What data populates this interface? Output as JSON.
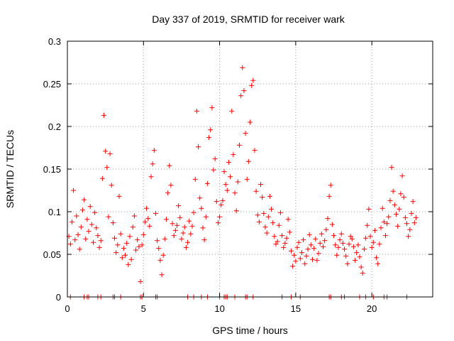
{
  "chart_data": {
    "type": "scatter",
    "title": "Day 337 of 2019, SRMTID for receiver wark",
    "xlabel": "GPS time / hours",
    "ylabel": "SRMTID / TECUs",
    "xlim": [
      0,
      24
    ],
    "ylim": [
      0,
      0.3
    ],
    "xticks": [
      0,
      5,
      10,
      15,
      20
    ],
    "xtick_labels": [
      "0",
      "5",
      "10",
      "15",
      "20"
    ],
    "yticks": [
      0,
      0.05,
      0.1,
      0.15,
      0.2,
      0.25,
      0.3
    ],
    "ytick_labels": [
      "0",
      "0.05",
      "0.1",
      "0.15",
      "0.2",
      "0.25",
      "0.3"
    ],
    "grid": true,
    "marker": "+",
    "color": "#ff0000",
    "series": [
      {
        "name": "SRMTID",
        "points": [
          [
            0.1,
            0.071
          ],
          [
            0.2,
            0.062
          ],
          [
            0.3,
            0.088
          ],
          [
            0.4,
            0.125
          ],
          [
            0.5,
            0.067
          ],
          [
            0.6,
            0.095
          ],
          [
            0.7,
            0.073
          ],
          [
            0.8,
            0.056
          ],
          [
            0.9,
            0.082
          ],
          [
            1.0,
            0.102
          ],
          [
            1.1,
            0.114
          ],
          [
            1.2,
            0.068
          ],
          [
            1.3,
            0.091
          ],
          [
            1.4,
            0.077
          ],
          [
            1.5,
            0.106
          ],
          [
            1.6,
            0.085
          ],
          [
            1.7,
            0.064
          ],
          [
            1.8,
            0.099
          ],
          [
            1.9,
            0.081
          ],
          [
            2.0,
            0.072
          ],
          [
            2.1,
            0.058
          ],
          [
            2.2,
            0.066
          ],
          [
            2.3,
            0.139
          ],
          [
            2.4,
            0.213
          ],
          [
            2.5,
            0.171
          ],
          [
            2.6,
            0.152
          ],
          [
            2.7,
            0.094
          ],
          [
            2.8,
            0.168
          ],
          [
            2.9,
            0.131
          ],
          [
            3.0,
            0.087
          ],
          [
            3.1,
            0.069
          ],
          [
            3.2,
            0.052
          ],
          [
            3.3,
            0.061
          ],
          [
            3.4,
            0.118
          ],
          [
            3.5,
            0.074
          ],
          [
            3.6,
            0.046
          ],
          [
            3.7,
            0.057
          ],
          [
            3.8,
            0.049
          ],
          [
            3.9,
            0.063
          ],
          [
            4.0,
            0.038
          ],
          [
            4.1,
            0.071
          ],
          [
            4.2,
            0.044
          ],
          [
            4.3,
            0.082
          ],
          [
            4.4,
            0.095
          ],
          [
            4.5,
            0.055
          ],
          [
            4.6,
            0.067
          ],
          [
            4.7,
            0.059
          ],
          [
            4.8,
            0.018
          ],
          [
            4.9,
            0.061
          ],
          [
            5.0,
            0.073
          ],
          [
            5.1,
            0.088
          ],
          [
            5.2,
            0.104
          ],
          [
            5.3,
            0.092
          ],
          [
            5.4,
            0.083
          ],
          [
            5.5,
            0.141
          ],
          [
            5.6,
            0.156
          ],
          [
            5.7,
            0.172
          ],
          [
            5.8,
            0.098
          ],
          [
            5.9,
            0.066
          ],
          [
            6.0,
            0.057
          ],
          [
            6.1,
            0.043
          ],
          [
            6.2,
            0.026
          ],
          [
            6.3,
            0.049
          ],
          [
            6.4,
            0.068
          ],
          [
            6.5,
            0.091
          ],
          [
            6.6,
            0.122
          ],
          [
            6.7,
            0.154
          ],
          [
            6.8,
            0.131
          ],
          [
            6.9,
            0.086
          ],
          [
            7.0,
            0.072
          ],
          [
            7.1,
            0.078
          ],
          [
            7.2,
            0.084
          ],
          [
            7.3,
            0.107
          ],
          [
            7.4,
            0.093
          ],
          [
            7.5,
            0.068
          ],
          [
            7.6,
            0.075
          ],
          [
            7.7,
            0.082
          ],
          [
            7.8,
            0.058
          ],
          [
            7.9,
            0.064
          ],
          [
            8.0,
            0.089
          ],
          [
            8.1,
            0.074
          ],
          [
            8.2,
            0.083
          ],
          [
            8.3,
            0.099
          ],
          [
            8.4,
            0.138
          ],
          [
            8.5,
            0.218
          ],
          [
            8.6,
            0.176
          ],
          [
            8.7,
            0.116
          ],
          [
            8.8,
            0.104
          ],
          [
            8.9,
            0.081
          ],
          [
            9.0,
            0.067
          ],
          [
            9.1,
            0.094
          ],
          [
            9.2,
            0.133
          ],
          [
            9.3,
            0.187
          ],
          [
            9.4,
            0.196
          ],
          [
            9.5,
            0.222
          ],
          [
            9.6,
            0.149
          ],
          [
            9.7,
            0.162
          ],
          [
            9.8,
            0.112
          ],
          [
            9.9,
            0.087
          ],
          [
            10.0,
            0.094
          ],
          [
            10.1,
            0.108
          ],
          [
            10.2,
            0.113
          ],
          [
            10.3,
            0.147
          ],
          [
            10.4,
            0.132
          ],
          [
            10.5,
            0.125
          ],
          [
            10.6,
            0.158
          ],
          [
            10.7,
            0.141
          ],
          [
            10.8,
            0.218
          ],
          [
            10.9,
            0.167
          ],
          [
            11.0,
            0.122
          ],
          [
            11.1,
            0.101
          ],
          [
            11.2,
            0.135
          ],
          [
            11.3,
            0.178
          ],
          [
            11.4,
            0.236
          ],
          [
            11.5,
            0.269
          ],
          [
            11.6,
            0.242
          ],
          [
            11.7,
            0.192
          ],
          [
            11.8,
            0.138
          ],
          [
            11.9,
            0.159
          ],
          [
            12.0,
            0.205
          ],
          [
            12.1,
            0.248
          ],
          [
            12.2,
            0.254
          ],
          [
            12.3,
            0.172
          ],
          [
            12.4,
            0.124
          ],
          [
            12.5,
            0.096
          ],
          [
            12.6,
            0.088
          ],
          [
            12.7,
            0.132
          ],
          [
            12.8,
            0.117
          ],
          [
            12.9,
            0.098
          ],
          [
            13.0,
            0.082
          ],
          [
            13.1,
            0.075
          ],
          [
            13.2,
            0.094
          ],
          [
            13.3,
            0.118
          ],
          [
            13.4,
            0.103
          ],
          [
            13.5,
            0.087
          ],
          [
            13.6,
            0.071
          ],
          [
            13.7,
            0.062
          ],
          [
            13.8,
            0.065
          ],
          [
            13.9,
            0.084
          ],
          [
            14.0,
            0.099
          ],
          [
            14.1,
            0.072
          ],
          [
            14.2,
            0.058
          ],
          [
            14.3,
            0.063
          ],
          [
            14.4,
            0.069
          ],
          [
            14.5,
            0.091
          ],
          [
            14.6,
            0.076
          ],
          [
            14.7,
            0.054
          ],
          [
            14.8,
            0.036
          ],
          [
            14.9,
            0.049
          ],
          [
            15.0,
            0.042
          ],
          [
            15.1,
            0.058
          ],
          [
            15.2,
            0.064
          ],
          [
            15.3,
            0.045
          ],
          [
            15.4,
            0.052
          ],
          [
            15.5,
            0.067
          ],
          [
            15.6,
            0.039
          ],
          [
            15.7,
            0.048
          ],
          [
            15.8,
            0.056
          ],
          [
            15.9,
            0.073
          ],
          [
            16.0,
            0.061
          ],
          [
            16.1,
            0.044
          ],
          [
            16.2,
            0.057
          ],
          [
            16.3,
            0.068
          ],
          [
            16.4,
            0.043
          ],
          [
            16.5,
            0.051
          ],
          [
            16.6,
            0.063
          ],
          [
            16.7,
            0.074
          ],
          [
            16.8,
            0.059
          ],
          [
            16.9,
            0.066
          ],
          [
            17.0,
            0.079
          ],
          [
            17.1,
            0.092
          ],
          [
            17.2,
            0.118
          ],
          [
            17.3,
            0.131
          ],
          [
            17.4,
            0.085
          ],
          [
            17.5,
            0.072
          ],
          [
            17.6,
            0.061
          ],
          [
            17.7,
            0.049
          ],
          [
            17.8,
            0.058
          ],
          [
            17.9,
            0.067
          ],
          [
            18.0,
            0.074
          ],
          [
            18.1,
            0.063
          ],
          [
            18.2,
            0.056
          ],
          [
            18.3,
            0.048
          ],
          [
            18.4,
            0.039
          ],
          [
            18.5,
            0.062
          ],
          [
            18.6,
            0.071
          ],
          [
            18.7,
            0.068
          ],
          [
            18.8,
            0.059
          ],
          [
            18.9,
            0.043
          ],
          [
            19.0,
            0.052
          ],
          [
            19.1,
            0.061
          ],
          [
            19.2,
            0.047
          ],
          [
            19.3,
            0.035
          ],
          [
            19.4,
            0.028
          ],
          [
            19.5,
            0.056
          ],
          [
            19.6,
            0.069
          ],
          [
            19.7,
            0.084
          ],
          [
            19.8,
            0.103
          ],
          [
            19.9,
            0.071
          ],
          [
            20.0,
            0.058
          ],
          [
            20.1,
            0.064
          ],
          [
            20.2,
            0.078
          ],
          [
            20.3,
            0.046
          ],
          [
            20.4,
            0.039
          ],
          [
            20.5,
            0.062
          ],
          [
            20.6,
            0.081
          ],
          [
            20.7,
            0.104
          ],
          [
            20.8,
            0.088
          ],
          [
            20.9,
            0.072
          ],
          [
            21.0,
            0.086
          ],
          [
            21.1,
            0.094
          ],
          [
            21.2,
            0.113
          ],
          [
            21.3,
            0.152
          ],
          [
            21.4,
            0.124
          ],
          [
            21.5,
            0.108
          ],
          [
            21.6,
            0.097
          ],
          [
            21.7,
            0.083
          ],
          [
            21.8,
            0.103
          ],
          [
            21.9,
            0.121
          ],
          [
            22.0,
            0.142
          ],
          [
            22.1,
            0.117
          ],
          [
            22.2,
            0.093
          ],
          [
            22.3,
            0.086
          ],
          [
            22.4,
            0.071
          ],
          [
            22.5,
            0.079
          ],
          [
            22.6,
            0.098
          ],
          [
            22.7,
            0.112
          ],
          [
            22.8,
            0.087
          ],
          [
            22.9,
            0.093
          ]
        ]
      }
    ],
    "zero_points_x": [
      0.2,
      1.1,
      1.3,
      1.4,
      2.0,
      2.2,
      3.0,
      3.1,
      3.5,
      4.8,
      4.9,
      5.8,
      5.9,
      7.9,
      8.3,
      8.8,
      9.2,
      10.0,
      10.3,
      10.4,
      10.5,
      11.0,
      11.7,
      11.8,
      12.2,
      14.1,
      14.7,
      15.3,
      17.2,
      17.3,
      18.0,
      18.2,
      19.2,
      19.6,
      20.1,
      20.8,
      21.0,
      22.3
    ]
  }
}
